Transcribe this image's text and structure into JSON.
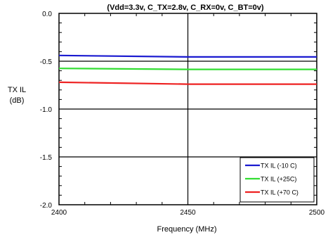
{
  "chart_data": {
    "type": "line",
    "title": "(Vdd=3.3v, C_TX=2.8v, C_RX=0v, C_BT=0v)",
    "xlabel": "Frequency (MHz)",
    "ylabel_line1": "TX IL",
    "ylabel_line2": "(dB)",
    "xlim": [
      2400,
      2500
    ],
    "ylim": [
      -2.0,
      0.0
    ],
    "x_ticks": [
      2400,
      2450,
      2500
    ],
    "x_tick_labels": [
      "2400",
      "2450",
      "2500"
    ],
    "y_ticks": [
      0.0,
      -0.5,
      -1.0,
      -1.5,
      -2.0
    ],
    "y_tick_labels": [
      "0.0",
      "-0.5",
      "-1.0",
      "-1.5",
      "-2.0"
    ],
    "grid": "major gridlines at x=2450 and y=-0.5, -1.0, -1.5",
    "legend_position": "bottom-right",
    "series": [
      {
        "name": "TX IL (-10 C)",
        "color": "#1a1ad0",
        "x": [
          2400,
          2450,
          2500
        ],
        "y": [
          -0.44,
          -0.455,
          -0.455
        ]
      },
      {
        "name": "TX IL (+25C)",
        "color": "#33dd33",
        "x": [
          2400,
          2450,
          2500
        ],
        "y": [
          -0.575,
          -0.585,
          -0.585
        ]
      },
      {
        "name": "TX IL (+70 C)",
        "color": "#ee2222",
        "x": [
          2400,
          2450,
          2500
        ],
        "y": [
          -0.72,
          -0.74,
          -0.74
        ]
      }
    ]
  }
}
